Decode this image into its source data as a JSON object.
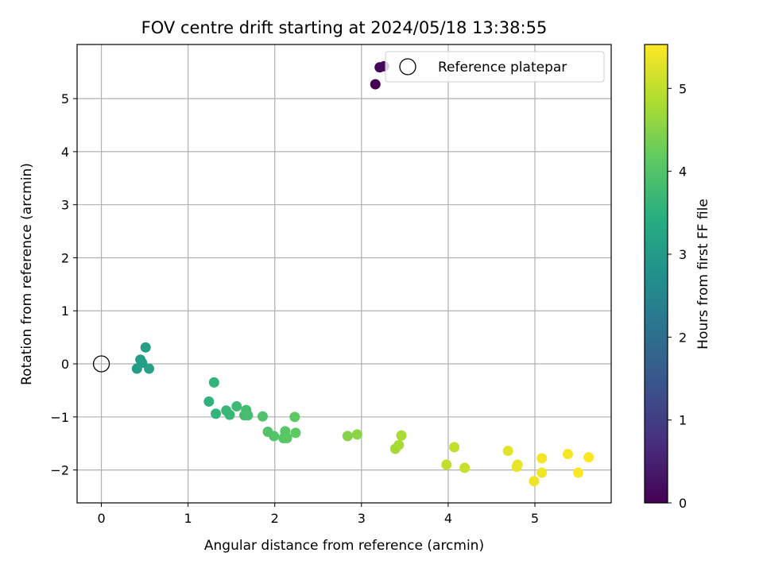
{
  "chart_data": {
    "type": "scatter",
    "title": "FOV centre drift starting at 2024/05/18 13:38:55",
    "xlabel": "Angular distance from reference (arcmin)",
    "ylabel": "Rotation from reference (arcmin)",
    "xlim": [
      -0.28,
      5.88
    ],
    "ylim": [
      -2.62,
      6.02
    ],
    "xticks": [
      0,
      1,
      2,
      3,
      4,
      5
    ],
    "yticks": [
      -2,
      -1,
      0,
      1,
      2,
      3,
      4,
      5
    ],
    "grid": true,
    "legend": {
      "label": "Reference platepar",
      "location": "top-right"
    },
    "reference_point": {
      "x": 0,
      "y": 0
    },
    "colorbar": {
      "label": "Hours from first FF file",
      "colormap": "viridis",
      "range": [
        0,
        5.53
      ],
      "ticks": [
        0,
        1,
        2,
        3,
        4,
        5
      ]
    },
    "points": [
      {
        "x": 3.16,
        "y": 5.27,
        "c": 0.0
      },
      {
        "x": 3.21,
        "y": 5.59,
        "c": 0.05
      },
      {
        "x": 3.26,
        "y": 5.61,
        "c": 0.1
      },
      {
        "x": 0.41,
        "y": -0.09,
        "c": 3.05
      },
      {
        "x": 0.45,
        "y": 0.08,
        "c": 3.08
      },
      {
        "x": 0.47,
        "y": 0.02,
        "c": 3.1
      },
      {
        "x": 0.51,
        "y": 0.31,
        "c": 3.12
      },
      {
        "x": 0.55,
        "y": -0.09,
        "c": 3.15
      },
      {
        "x": 1.24,
        "y": -0.71,
        "c": 3.55
      },
      {
        "x": 1.3,
        "y": -0.35,
        "c": 3.58
      },
      {
        "x": 1.32,
        "y": -0.94,
        "c": 3.6
      },
      {
        "x": 1.44,
        "y": -0.88,
        "c": 3.65
      },
      {
        "x": 1.48,
        "y": -0.96,
        "c": 3.68
      },
      {
        "x": 1.56,
        "y": -0.8,
        "c": 3.75
      },
      {
        "x": 1.65,
        "y": -0.97,
        "c": 3.8
      },
      {
        "x": 1.67,
        "y": -0.87,
        "c": 3.82
      },
      {
        "x": 1.69,
        "y": -0.97,
        "c": 3.85
      },
      {
        "x": 1.86,
        "y": -0.99,
        "c": 3.95
      },
      {
        "x": 1.92,
        "y": -1.28,
        "c": 4.0
      },
      {
        "x": 1.99,
        "y": -1.36,
        "c": 4.02
      },
      {
        "x": 2.1,
        "y": -1.4,
        "c": 4.05
      },
      {
        "x": 2.12,
        "y": -1.27,
        "c": 4.07
      },
      {
        "x": 2.14,
        "y": -1.4,
        "c": 4.1
      },
      {
        "x": 2.23,
        "y": -1.0,
        "c": 4.12
      },
      {
        "x": 2.24,
        "y": -1.3,
        "c": 4.15
      },
      {
        "x": 2.84,
        "y": -1.36,
        "c": 4.5
      },
      {
        "x": 2.95,
        "y": -1.33,
        "c": 4.55
      },
      {
        "x": 3.39,
        "y": -1.6,
        "c": 4.75
      },
      {
        "x": 3.43,
        "y": -1.53,
        "c": 4.78
      },
      {
        "x": 3.46,
        "y": -1.35,
        "c": 4.8
      },
      {
        "x": 3.98,
        "y": -1.9,
        "c": 5.0
      },
      {
        "x": 4.07,
        "y": -1.57,
        "c": 5.03
      },
      {
        "x": 4.19,
        "y": -1.96,
        "c": 5.07
      },
      {
        "x": 4.69,
        "y": -1.64,
        "c": 5.3
      },
      {
        "x": 4.79,
        "y": -1.94,
        "c": 5.33
      },
      {
        "x": 4.8,
        "y": -1.9,
        "c": 5.35
      },
      {
        "x": 4.99,
        "y": -2.21,
        "c": 5.4
      },
      {
        "x": 5.08,
        "y": -2.05,
        "c": 5.42
      },
      {
        "x": 5.08,
        "y": -1.78,
        "c": 5.44
      },
      {
        "x": 5.38,
        "y": -1.7,
        "c": 5.48
      },
      {
        "x": 5.5,
        "y": -2.05,
        "c": 5.5
      },
      {
        "x": 5.62,
        "y": -1.76,
        "c": 5.53
      }
    ]
  }
}
